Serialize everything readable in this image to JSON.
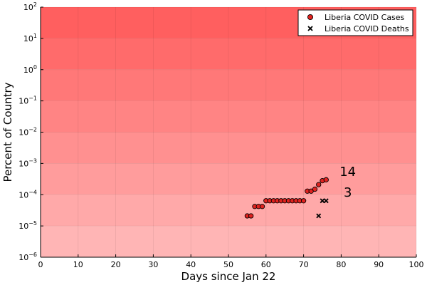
{
  "chart_data": {
    "type": "scatter",
    "xlabel": "Days since Jan 22",
    "ylabel": "Percent of Country",
    "xlim": [
      0,
      100
    ],
    "ylim": [
      1e-06,
      100
    ],
    "yscale": "log",
    "grid": true,
    "legend_position": "top-right",
    "x_ticks": [
      "0",
      "10",
      "20",
      "30",
      "40",
      "50",
      "60",
      "70",
      "80",
      "90",
      "100"
    ],
    "y_ticks": [
      {
        "base": "10",
        "exp": "2"
      },
      {
        "base": "10",
        "exp": "1"
      },
      {
        "base": "10",
        "exp": "0"
      },
      {
        "base": "10",
        "exp": "−1"
      },
      {
        "base": "10",
        "exp": "−2"
      },
      {
        "base": "10",
        "exp": "−3"
      },
      {
        "base": "10",
        "exp": "−4"
      },
      {
        "base": "10",
        "exp": "−5"
      },
      {
        "base": "10",
        "exp": "−6"
      }
    ],
    "series": [
      {
        "name": "Liberia COVID Cases",
        "marker": "circle",
        "color": "#e0221f",
        "x": [
          55,
          56,
          57,
          58,
          59,
          60,
          61,
          62,
          63,
          64,
          65,
          66,
          67,
          68,
          69,
          70,
          71,
          72,
          73,
          74,
          75,
          76
        ],
        "y": [
          2.1e-05,
          2.1e-05,
          4.2e-05,
          4.2e-05,
          4.2e-05,
          6.4e-05,
          6.4e-05,
          6.4e-05,
          6.4e-05,
          6.4e-05,
          6.4e-05,
          6.4e-05,
          6.4e-05,
          6.4e-05,
          6.4e-05,
          6.4e-05,
          0.00013,
          0.00013,
          0.00015,
          0.00021,
          0.00028,
          0.0003
        ]
      },
      {
        "name": "Liberia COVID Deaths",
        "marker": "x",
        "color": "#000000",
        "x": [
          74,
          75,
          76
        ],
        "y": [
          2.1e-05,
          6.4e-05,
          6.4e-05
        ]
      }
    ],
    "annotations": [
      {
        "text": "14",
        "x": 81,
        "y": 0.00055
      },
      {
        "text": "3",
        "x": 81,
        "y": 0.00012
      }
    ],
    "bands": {
      "from_color": "#ffb5b5",
      "to_color": "#ff5f5f"
    }
  }
}
